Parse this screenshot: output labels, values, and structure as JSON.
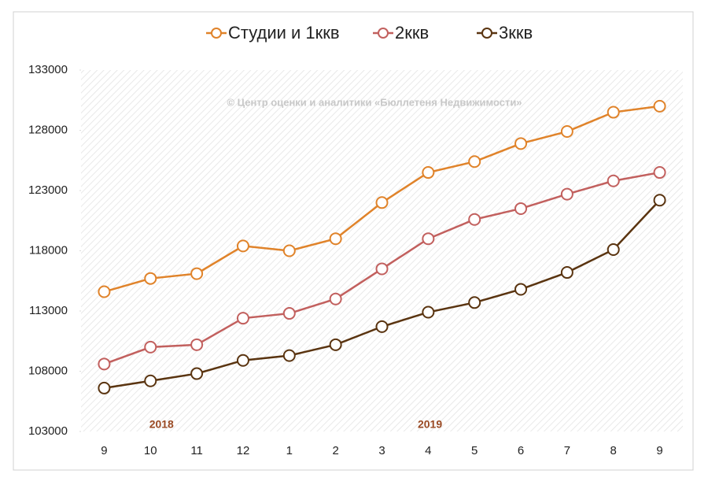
{
  "chart_data": {
    "type": "line",
    "categories": [
      "9",
      "10",
      "11",
      "12",
      "1",
      "2",
      "3",
      "4",
      "5",
      "6",
      "7",
      "8",
      "9"
    ],
    "series": [
      {
        "name": "Студии и 1ккв",
        "color": "#e0832a",
        "values": [
          114600,
          115700,
          116100,
          118400,
          118000,
          119000,
          122000,
          124500,
          125400,
          126900,
          127900,
          129500,
          130000
        ]
      },
      {
        "name": "2ккв",
        "color": "#c2605e",
        "values": [
          108600,
          110000,
          110200,
          112400,
          112800,
          114000,
          116500,
          119000,
          120600,
          121500,
          122700,
          123800,
          124500
        ]
      },
      {
        "name": "3ккв",
        "color": "#5a3410",
        "values": [
          106600,
          107200,
          107800,
          108900,
          109300,
          110200,
          111700,
          112900,
          113700,
          114800,
          116200,
          118100,
          122200
        ]
      }
    ],
    "ylim": [
      103000,
      133000
    ],
    "yticks": [
      103000,
      108000,
      113000,
      118000,
      123000,
      128000,
      133000
    ],
    "watermark": "© Центр оценки и аналитики «Бюллетеня Недвижимости»",
    "year_labels": [
      "2018",
      "2019"
    ],
    "legend": "top"
  }
}
